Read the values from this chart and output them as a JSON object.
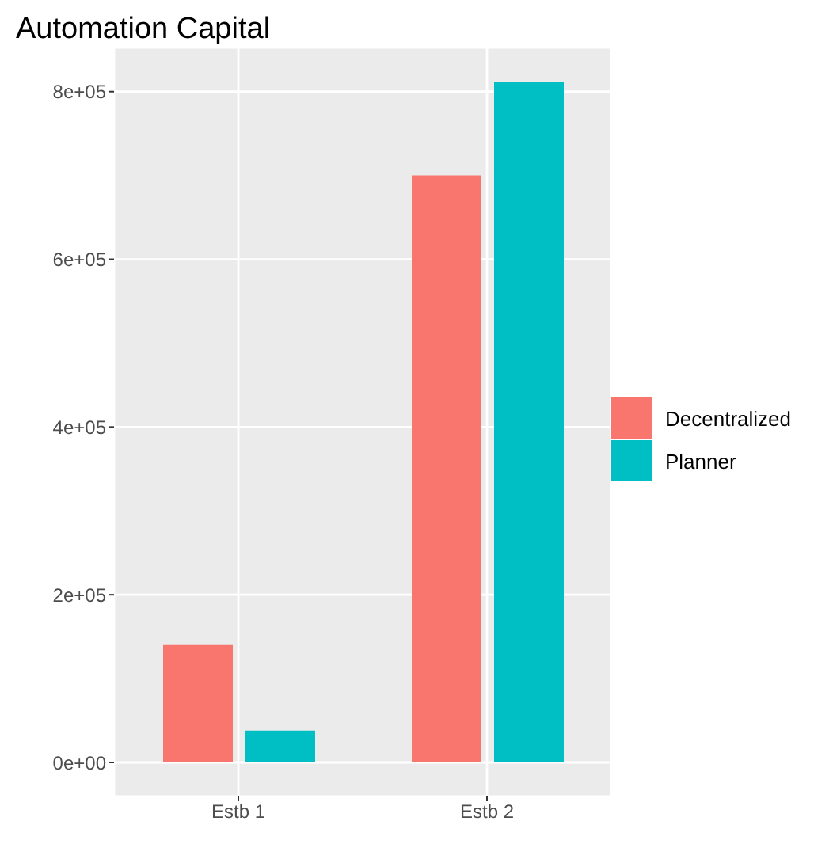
{
  "chart_data": {
    "type": "bar",
    "title": "Automation Capital",
    "categories": [
      "Estb 1",
      "Estb 2"
    ],
    "series": [
      {
        "name": "Decentralized",
        "color": "#f8766d",
        "values": [
          140000,
          700000
        ]
      },
      {
        "name": "Planner",
        "color": "#00bfc4",
        "values": [
          38000,
          812000
        ]
      }
    ],
    "ylim": [
      -40600,
      852600
    ],
    "yticks": [
      {
        "value": 0,
        "label": "0e+00"
      },
      {
        "value": 200000,
        "label": "2e+05"
      },
      {
        "value": 400000,
        "label": "4e+05"
      },
      {
        "value": 600000,
        "label": "6e+05"
      },
      {
        "value": 800000,
        "label": "8e+05"
      }
    ],
    "grid": true,
    "legend": "right"
  }
}
